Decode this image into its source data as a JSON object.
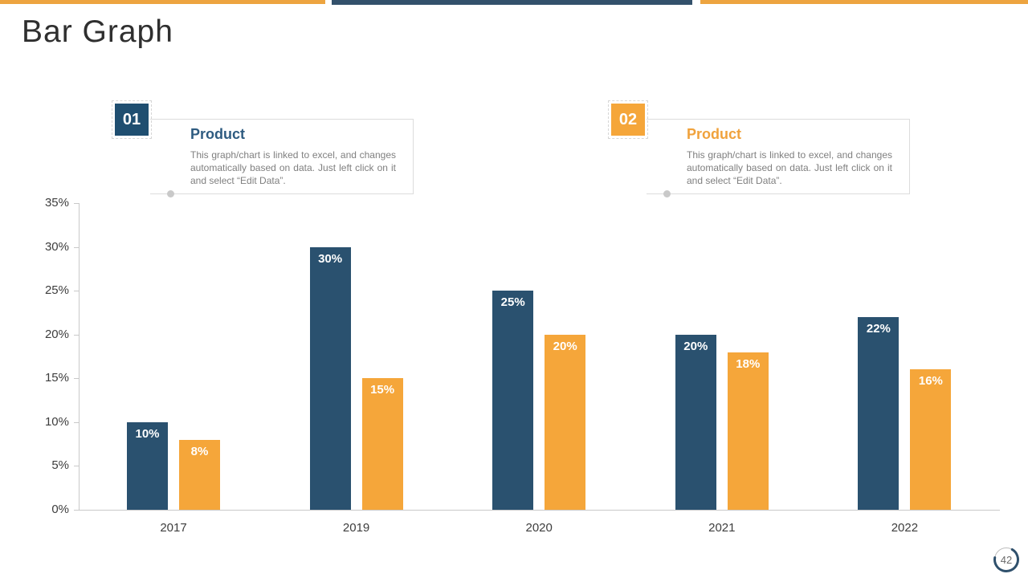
{
  "slide": {
    "title": "Bar Graph",
    "page_number": "42"
  },
  "colors": {
    "navy": "#2a516f",
    "orange": "#f5a63a",
    "stripe_navy": "#33516b",
    "stripe_orange": "#eda440",
    "heading_navy": "#2e5b80",
    "heading_orange": "#f0a23c"
  },
  "callouts": [
    {
      "number": "01",
      "heading": "Product",
      "body": "This graph/chart is linked to excel, and changes automatically based on data. Just left click on it and select “Edit Data”.",
      "accent": "#1f4e70"
    },
    {
      "number": "02",
      "heading": "Product",
      "body": "This graph/chart is linked to excel, and changes automatically based on data. Just left click on it and select “Edit Data”.",
      "accent": "#f5a63a"
    }
  ],
  "chart_data": {
    "type": "bar",
    "title": "",
    "xlabel": "",
    "ylabel": "",
    "categories": [
      "2017",
      "2019",
      "2020",
      "2021",
      "2022"
    ],
    "series": [
      {
        "color": "#2a516f",
        "values": [
          10,
          30,
          25,
          20,
          22
        ],
        "labels": [
          "10%",
          "30%",
          "25%",
          "20%",
          "22%"
        ]
      },
      {
        "color": "#f5a63a",
        "values": [
          8,
          15,
          20,
          18,
          16
        ],
        "labels": [
          "8%",
          "15%",
          "20%",
          "18%",
          "16%"
        ]
      }
    ],
    "ylim": [
      0,
      35
    ],
    "yticks": [
      "0%",
      "5%",
      "10%",
      "15%",
      "20%",
      "25%",
      "30%",
      "35%"
    ],
    "value_suffix": "%",
    "grid": false,
    "legend": "none"
  }
}
